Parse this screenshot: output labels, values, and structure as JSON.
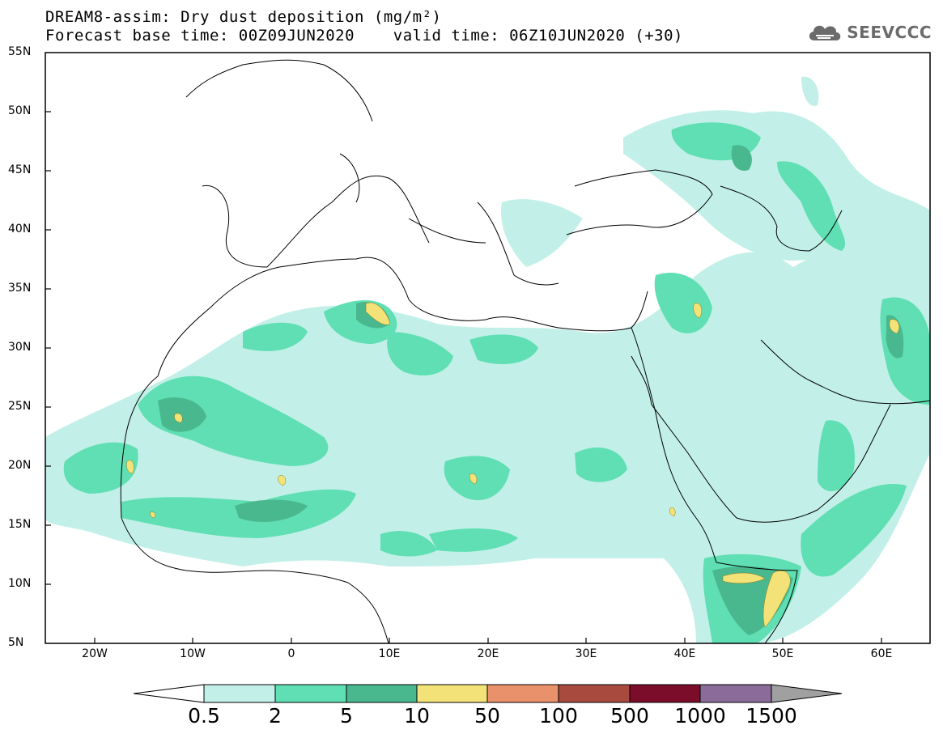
{
  "title_line1": "DREAM8-assim: Dry dust deposition (mg/m²)",
  "title_line2": "Forecast base time: 00Z09JUN2020    valid time: 06Z10JUN2020 (+30)",
  "logo_text": "SEEVCCC",
  "map": {
    "lon_range": [
      -25,
      65
    ],
    "lat_range": [
      5,
      55
    ],
    "lat_ticks": [
      "55N",
      "50N",
      "45N",
      "40N",
      "35N",
      "30N",
      "25N",
      "20N",
      "15N",
      "10N",
      "5N"
    ],
    "lon_ticks": [
      "20W",
      "10W",
      "0",
      "10E",
      "20E",
      "30E",
      "40E",
      "50E",
      "60E"
    ],
    "background": "#ffffff",
    "coastline_color": "#000000"
  },
  "colorbar": {
    "labels": [
      "0.5",
      "2",
      "5",
      "10",
      "50",
      "100",
      "500",
      "1000",
      "1500"
    ],
    "colors": [
      "#c2f0e8",
      "#5fdfb3",
      "#4ab88e",
      "#f2e277",
      "#e9916a",
      "#a84a3e",
      "#7b0d2b",
      "#8a6b9a",
      "#a0a0a0"
    ]
  }
}
